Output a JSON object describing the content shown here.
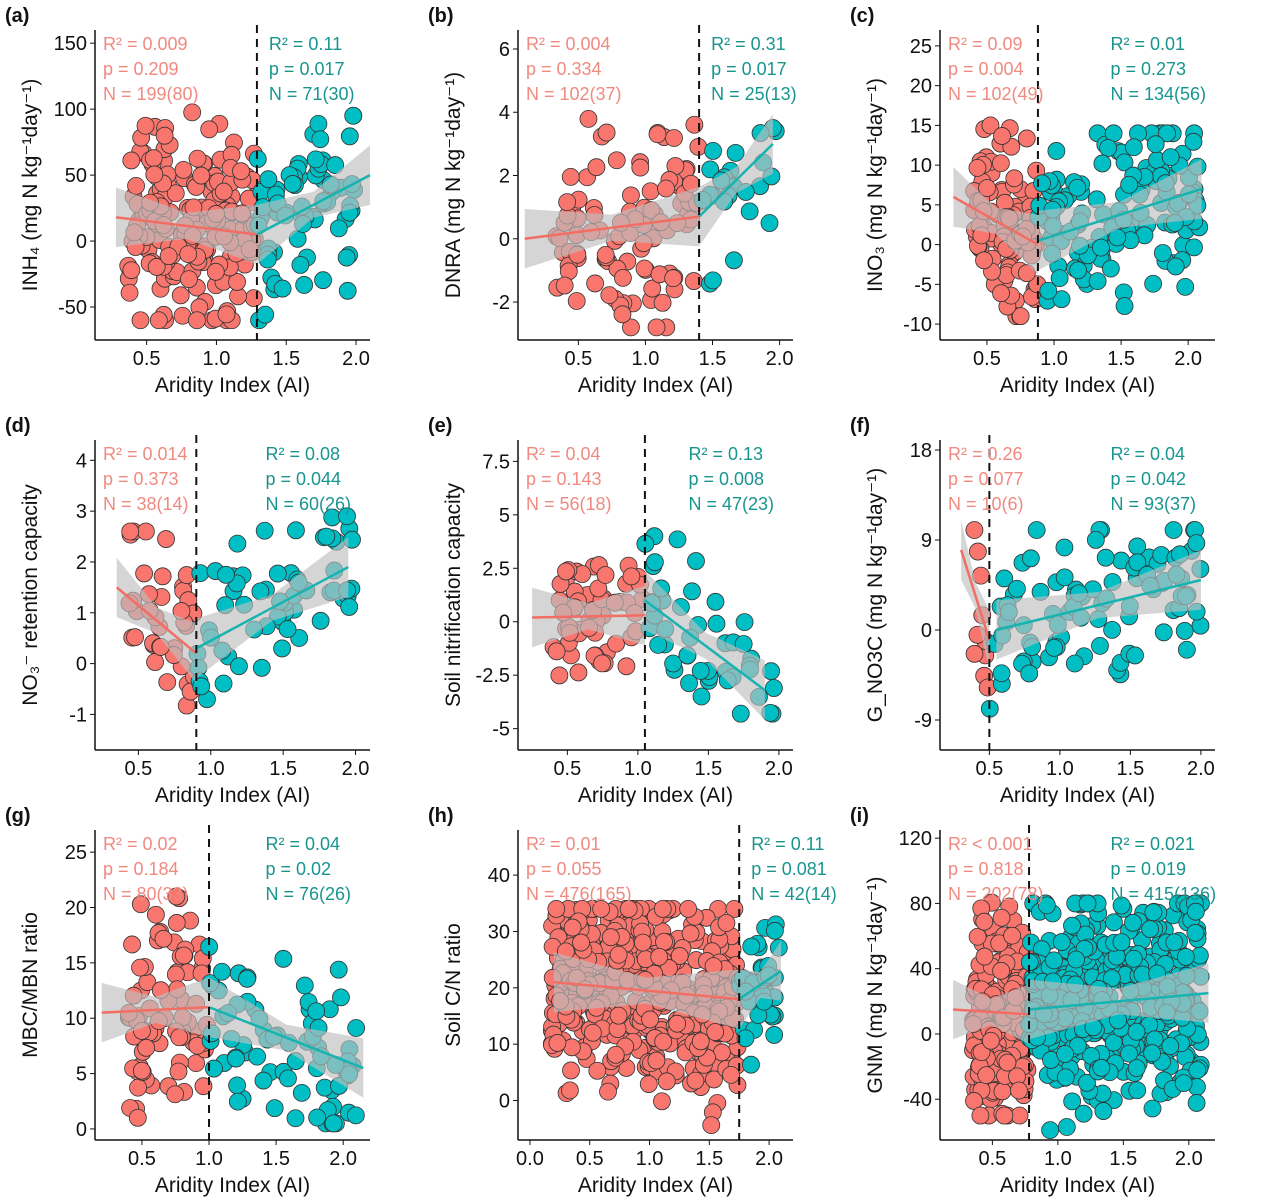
{
  "chart_data": [
    {
      "panel": "(a)",
      "type": "scatter",
      "xlabel": "Aridity Index (AI)",
      "ylabel": "INH₄ (mg N kg⁻¹day⁻¹)",
      "xlim": [
        0.13,
        2.1
      ],
      "xticks": [
        0.5,
        1.0,
        1.5,
        2.0
      ],
      "ylim": [
        -75,
        160
      ],
      "yticks": [
        -50,
        0,
        50,
        100,
        150
      ],
      "threshold": 1.29,
      "left": {
        "R2": "R² = 0.009",
        "p": "p = 0.209",
        "N": "N = 199(80)",
        "n": 199,
        "fit": [
          [
            0.28,
            18
          ],
          [
            1.29,
            5
          ]
        ],
        "yrange": [
          -60,
          100
        ]
      },
      "right": {
        "R2": "R² = 0.11",
        "p": "p = 0.017",
        "N": "N = 71(30)",
        "n": 71,
        "fit": [
          [
            1.29,
            5
          ],
          [
            2.1,
            50
          ]
        ],
        "yrange": [
          -60,
          95
        ]
      }
    },
    {
      "panel": "(b)",
      "type": "scatter",
      "xlabel": "Aridity Index (AI)",
      "ylabel": "DNRA (mg N kg⁻¹day⁻¹)",
      "xlim": [
        0.05,
        2.1
      ],
      "xticks": [
        0.5,
        1.0,
        1.5,
        2.0
      ],
      "ylim": [
        -3.2,
        6.6
      ],
      "yticks": [
        -2,
        0,
        2,
        4,
        6
      ],
      "threshold": 1.4,
      "left": {
        "R2": "R² = 0.004",
        "p": "p = 0.334",
        "N": "N = 102(37)",
        "n": 102,
        "fit": [
          [
            0.1,
            0
          ],
          [
            1.4,
            0.7
          ]
        ],
        "yrange": [
          -2.8,
          4
        ]
      },
      "right": {
        "R2": "R² = 0.31",
        "p": "p = 0.017",
        "N": "N = 25(13)",
        "n": 25,
        "fit": [
          [
            1.4,
            0.7
          ],
          [
            1.95,
            3
          ]
        ],
        "yrange": [
          -1.5,
          3.5
        ]
      }
    },
    {
      "panel": "(c)",
      "type": "scatter",
      "xlabel": "Aridity Index (AI)",
      "ylabel": "INO₃ (mg N kg⁻¹day⁻¹)",
      "xlim": [
        0.15,
        2.2
      ],
      "xticks": [
        0.5,
        1.0,
        1.5,
        2.0
      ],
      "ylim": [
        -12,
        27
      ],
      "yticks": [
        -10,
        -5,
        0,
        5,
        10,
        15,
        20,
        25
      ],
      "threshold": 0.88,
      "left": {
        "R2": "R² = 0.09",
        "p": "p = 0.004",
        "N": "N = 102(49)",
        "n": 102,
        "fit": [
          [
            0.25,
            6
          ],
          [
            0.88,
            0
          ]
        ],
        "yrange": [
          -9,
          15
        ]
      },
      "right": {
        "R2": "R² = 0.01",
        "p": "p = 0.273",
        "N": "N = 134(56)",
        "n": 134,
        "fit": [
          [
            0.88,
            0.5
          ],
          [
            2.1,
            7
          ]
        ],
        "yrange": [
          -10,
          14
        ]
      }
    },
    {
      "panel": "(d)",
      "type": "scatter",
      "xlabel": "Aridity Index (AI)",
      "ylabel": "NO₃⁻ retention capacity",
      "xlim": [
        0.2,
        2.1
      ],
      "xticks": [
        0.5,
        1.0,
        1.5,
        2.0
      ],
      "ylim": [
        -1.7,
        4.4
      ],
      "yticks": [
        -1,
        0,
        1,
        2,
        3,
        4
      ],
      "threshold": 0.9,
      "left": {
        "R2": "R² = 0.014",
        "p": "p = 0.373",
        "N": "N = 38(14)",
        "n": 38,
        "fit": [
          [
            0.35,
            1.5
          ],
          [
            0.9,
            0.2
          ]
        ],
        "yrange": [
          -1.3,
          2.6
        ]
      },
      "right": {
        "R2": "R² = 0.08",
        "p": "p = 0.044",
        "N": "N = 60(26)",
        "n": 60,
        "fit": [
          [
            0.9,
            0.3
          ],
          [
            1.95,
            1.9
          ]
        ],
        "yrange": [
          -0.7,
          2.9
        ]
      }
    },
    {
      "panel": "(e)",
      "type": "scatter",
      "xlabel": "Aridity Index (AI)",
      "ylabel": "Soil nitrification capacity",
      "xlim": [
        0.15,
        2.1
      ],
      "xticks": [
        0.5,
        1.0,
        1.5,
        2.0
      ],
      "ylim": [
        -6,
        8.5
      ],
      "yticks": [
        -5.0,
        -2.5,
        0.0,
        2.5,
        5.0,
        7.5
      ],
      "threshold": 1.05,
      "left": {
        "R2": "R² = 0.04",
        "p": "p = 0.143",
        "N": "N = 56(18)",
        "n": 56,
        "fit": [
          [
            0.25,
            0.2
          ],
          [
            1.05,
            0.3
          ]
        ],
        "yrange": [
          -2.8,
          3.7
        ]
      },
      "right": {
        "R2": "R² = 0.13",
        "p": "p = 0.008",
        "N": "N = 47(23)",
        "n": 47,
        "fit": [
          [
            1.05,
            1
          ],
          [
            1.9,
            -3.2
          ]
        ],
        "yrange": [
          -4.3,
          4
        ]
      }
    },
    {
      "panel": "(f)",
      "type": "scatter",
      "xlabel": "Aridity Index (AI)",
      "ylabel": "G_NO3C (mg N kg⁻¹day⁻¹)",
      "xlim": [
        0.15,
        2.1
      ],
      "xticks": [
        0.5,
        1.0,
        1.5,
        2.0
      ],
      "ylim": [
        -12,
        19
      ],
      "yticks": [
        -9,
        0,
        9,
        18
      ],
      "threshold": 0.5,
      "left": {
        "R2": "R² = 0.26",
        "p": "p = 0.077",
        "N": "N = 10(6)",
        "n": 10,
        "fit": [
          [
            0.3,
            8
          ],
          [
            0.5,
            -1
          ]
        ],
        "yrange": [
          -7,
          10
        ]
      },
      "right": {
        "R2": "R² = 0.04",
        "p": "p = 0.042",
        "N": "N = 93(37)",
        "n": 93,
        "fit": [
          [
            0.55,
            0
          ],
          [
            2.0,
            5
          ]
        ],
        "yrange": [
          -10,
          10
        ]
      }
    },
    {
      "panel": "(g)",
      "type": "scatter",
      "xlabel": "Aridity Index (AI)",
      "ylabel": "MBC/MBN ratio",
      "xlim": [
        0.15,
        2.2
      ],
      "xticks": [
        0.5,
        1.0,
        1.5,
        2.0
      ],
      "ylim": [
        -1,
        27
      ],
      "yticks": [
        0,
        5,
        10,
        15,
        20,
        25
      ],
      "threshold": 1.0,
      "left": {
        "R2": "R² = 0.02",
        "p": "p = 0.184",
        "N": "N = 80(33)",
        "n": 80,
        "fit": [
          [
            0.2,
            10.5
          ],
          [
            1.0,
            11
          ]
        ],
        "yrange": [
          1,
          21
        ]
      },
      "right": {
        "R2": "R² = 0.04",
        "p": "p = 0.02",
        "N": "N = 76(26)",
        "n": 76,
        "fit": [
          [
            1.0,
            11
          ],
          [
            2.15,
            5.5
          ]
        ],
        "yrange": [
          0.5,
          20
        ]
      }
    },
    {
      "panel": "(h)",
      "type": "scatter",
      "xlabel": "Aridity Index (AI)",
      "ylabel": "Soil C/N ratio",
      "xlim": [
        -0.1,
        2.2
      ],
      "xticks": [
        0.0,
        0.5,
        1.0,
        1.5,
        2.0
      ],
      "ylim": [
        -7,
        48
      ],
      "yticks": [
        0,
        10,
        20,
        30,
        40
      ],
      "threshold": 1.75,
      "left": {
        "R2": "R² = 0.01",
        "p": "p = 0.055",
        "N": "N = 476(165)",
        "n": 476,
        "fit": [
          [
            0.2,
            21
          ],
          [
            1.75,
            18
          ]
        ],
        "yrange": [
          -5,
          34
        ]
      },
      "right": {
        "R2": "R² = 0.11",
        "p": "p = 0.081",
        "N": "N = 42(14)",
        "n": 42,
        "fit": [
          [
            1.75,
            18
          ],
          [
            2.1,
            23
          ]
        ],
        "yrange": [
          6,
          33
        ]
      }
    },
    {
      "panel": "(i)",
      "type": "scatter",
      "xlabel": "Aridity Index (AI)",
      "ylabel": "GNM (mg N kg⁻¹day⁻¹)",
      "xlim": [
        0.1,
        2.2
      ],
      "xticks": [
        0.5,
        1.0,
        1.5,
        2.0
      ],
      "ylim": [
        -65,
        125
      ],
      "yticks": [
        -40,
        0,
        40,
        80,
        120
      ],
      "threshold": 0.78,
      "left": {
        "R2": "R² < 0.001",
        "p": "p = 0.818",
        "N": "N = 202(78)",
        "n": 202,
        "fit": [
          [
            0.2,
            15
          ],
          [
            0.78,
            12
          ]
        ],
        "yrange": [
          -50,
          85
        ]
      },
      "right": {
        "R2": "R² = 0.021",
        "p": "p = 0.019",
        "N": "N = 415(136)",
        "n": 415,
        "fit": [
          [
            0.78,
            15
          ],
          [
            2.15,
            25
          ]
        ],
        "yrange": [
          -60,
          80
        ]
      }
    }
  ],
  "colors": {
    "left_point": "#F8766D",
    "right_point": "#00BFC4",
    "left_line": "#F26D63",
    "right_line": "#17B3B0",
    "left_text": "#F08A80",
    "right_text": "#18958F",
    "band": "#BEBEBE"
  }
}
